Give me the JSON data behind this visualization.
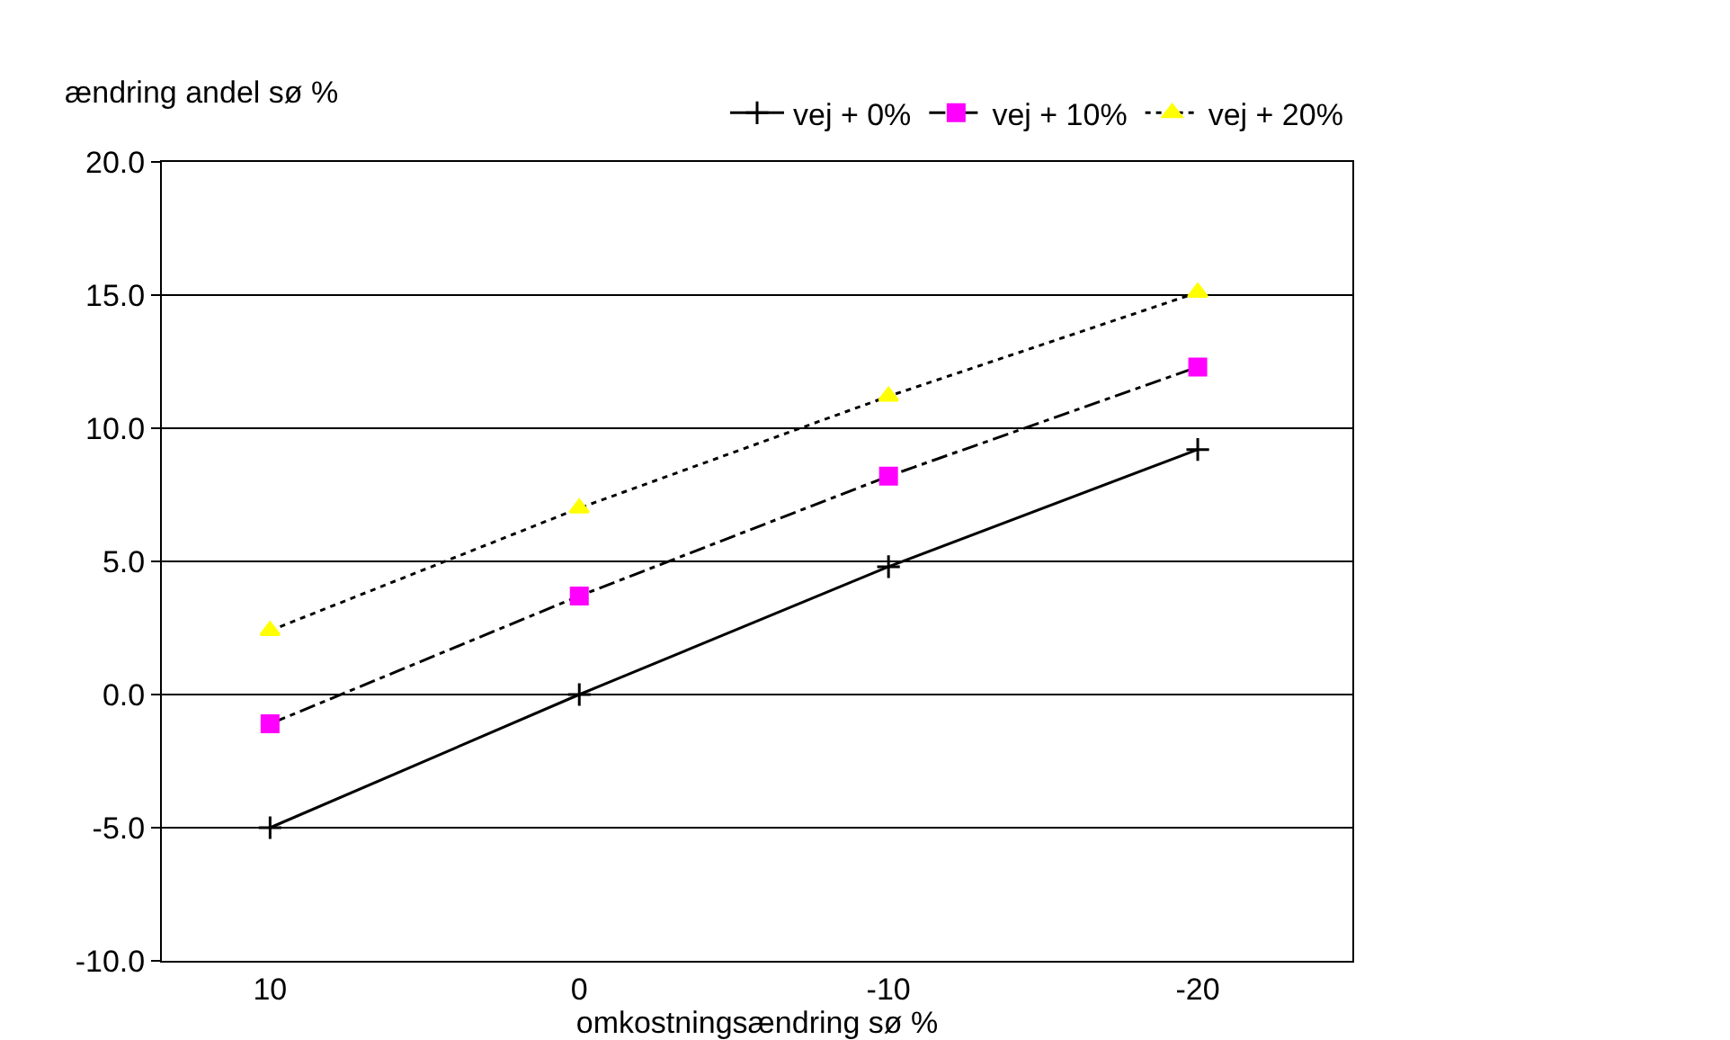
{
  "chart_data": {
    "type": "line",
    "ylabel": "ændring andel sø %",
    "xlabel": "omkostningsændring sø %",
    "categories": [
      "10",
      "0",
      "-10",
      "-20"
    ],
    "series": [
      {
        "name": "vej + 0%",
        "color": "#000000",
        "values": [
          -5.0,
          0.0,
          4.8,
          9.2
        ],
        "marker": "cross",
        "line_style": "solid"
      },
      {
        "name": "vej + 10%",
        "color": "#ff00ff",
        "values": [
          -1.1,
          3.7,
          8.2,
          12.3
        ],
        "marker": "square",
        "line_style": "dashed"
      },
      {
        "name": "vej + 20%",
        "color": "#ffff00",
        "values": [
          2.4,
          7.0,
          11.2,
          15.1
        ],
        "marker": "triangle",
        "line_style": "dotted"
      }
    ],
    "ylim": [
      -10,
      20
    ],
    "yticks": [
      {
        "value": -10,
        "label": "-10.0"
      },
      {
        "value": -5,
        "label": "-5.0"
      },
      {
        "value": 0,
        "label": "0.0"
      },
      {
        "value": 5,
        "label": "5.0"
      },
      {
        "value": 10,
        "label": "10.0"
      },
      {
        "value": 15,
        "label": "15.0"
      },
      {
        "value": 20,
        "label": "20.0"
      }
    ],
    "grid": "y",
    "legend": "top right"
  }
}
